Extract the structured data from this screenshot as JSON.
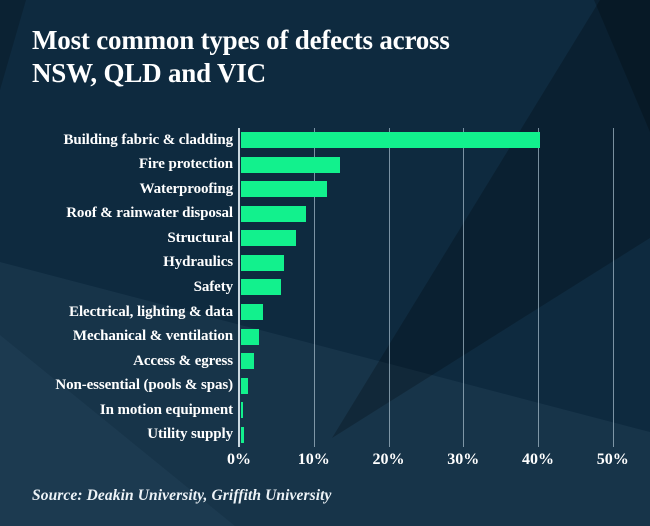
{
  "title": {
    "line1": "Most common types of defects across",
    "line2": "NSW, QLD and VIC"
  },
  "source": "Source: Deakin University, Griffith University",
  "colors": {
    "background": "#0e2a3f",
    "shard_dark": "#0a2030",
    "shard_light": "#17354e",
    "bar": "#12f18d",
    "gridline": "#b6cbd8",
    "text": "#ffffff"
  },
  "chart_data": {
    "type": "bar",
    "orientation": "horizontal",
    "title": "Most common types of defects across NSW, QLD and VIC",
    "categories": [
      "Building fabric & cladding",
      "Fire protection",
      "Waterproofing",
      "Roof & rainwater disposal",
      "Structural",
      "Hydraulics",
      "Safety",
      "Electrical, lighting & data",
      "Mechanical & ventilation",
      "Access & egress",
      "Non-essential (pools & spas)",
      "In motion equipment",
      "Utility supply"
    ],
    "values": [
      40,
      13.2,
      11.5,
      8.7,
      7.3,
      5.8,
      5.3,
      2.9,
      2.4,
      1.8,
      0.9,
      0.3,
      0.35
    ],
    "unit": "%",
    "xlabel": "",
    "ylabel": "",
    "x_ticks": [
      "0%",
      "10%",
      "20%",
      "30%",
      "40%",
      "50%"
    ],
    "x_tick_values": [
      0,
      10,
      20,
      30,
      40,
      50
    ],
    "xlim": [
      0,
      52.3
    ],
    "grid": true,
    "legend": "none",
    "source": "Source: Deakin University, Griffith University"
  }
}
